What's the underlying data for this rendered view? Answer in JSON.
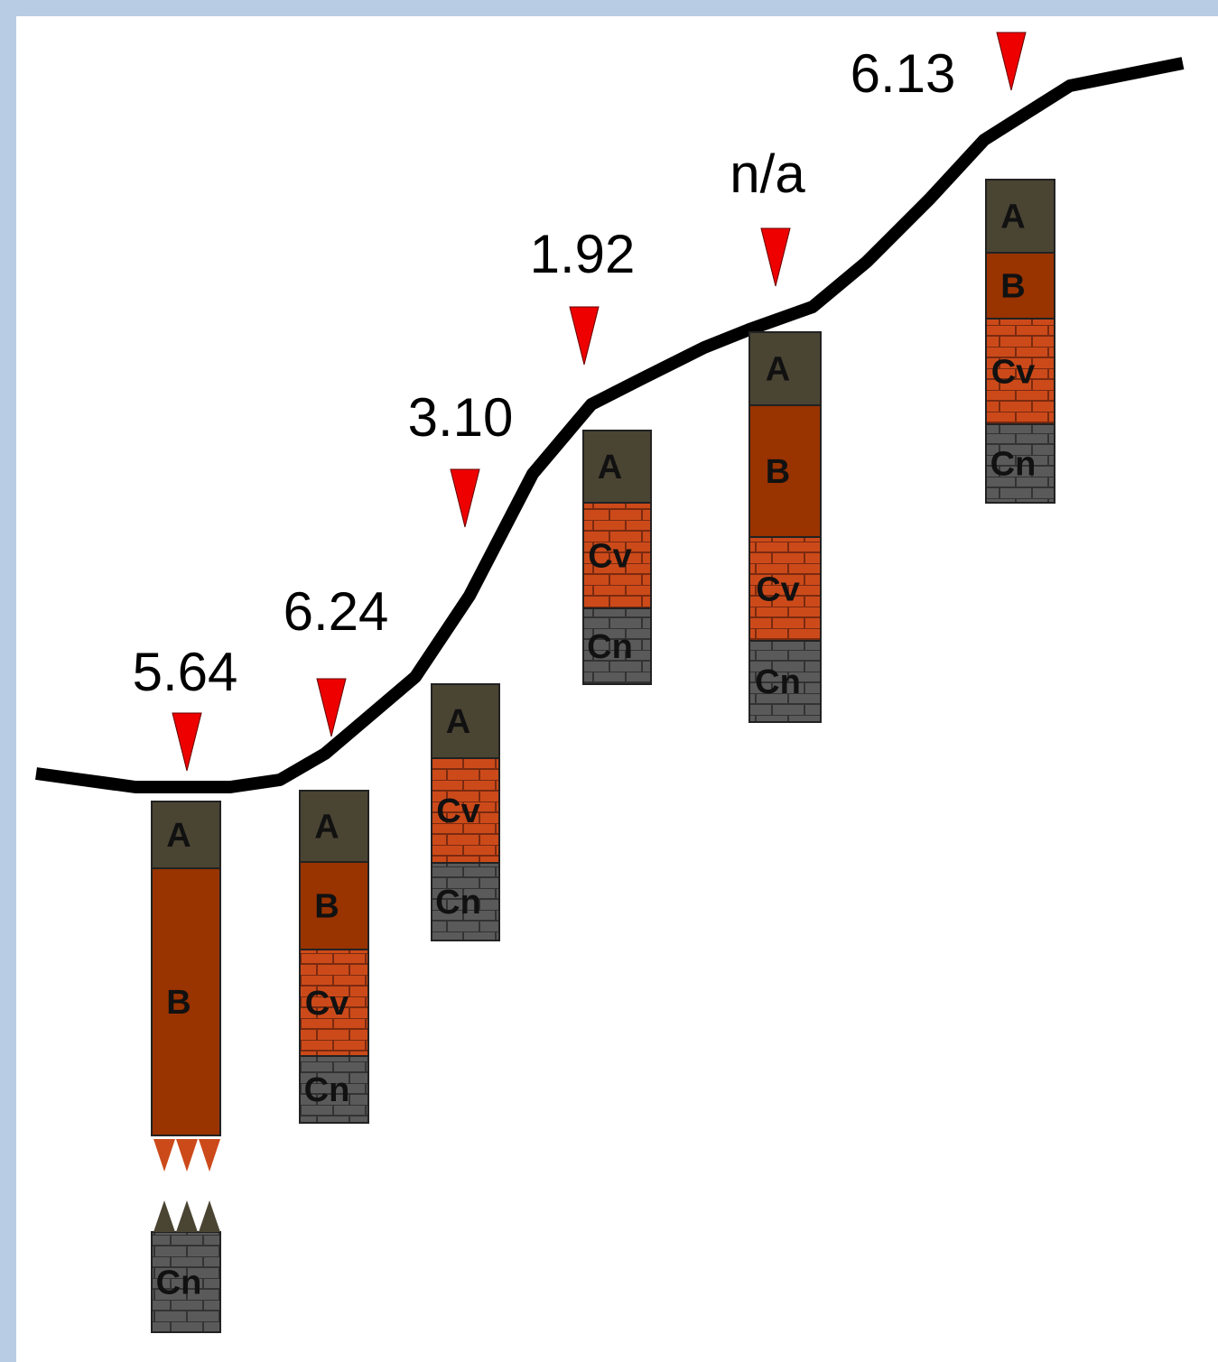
{
  "profiles": [
    {
      "value": "5.64",
      "layers": [
        "A",
        "B",
        "Cn"
      ]
    },
    {
      "value": "6.24",
      "layers": [
        "A",
        "B",
        "Cv",
        "Cn"
      ]
    },
    {
      "value": "3.10",
      "layers": [
        "A",
        "Cv",
        "Cn"
      ]
    },
    {
      "value": "1.92",
      "layers": [
        "A",
        "Cv",
        "Cn"
      ]
    },
    {
      "value": "n/a",
      "layers": [
        "A",
        "B",
        "Cv",
        "Cn"
      ]
    },
    {
      "value": "6.13",
      "layers": [
        "A",
        "B",
        "Cv",
        "Cn"
      ]
    }
  ]
}
